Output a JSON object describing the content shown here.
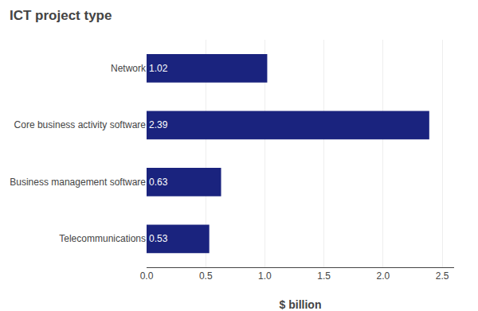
{
  "chart_data": {
    "type": "bar",
    "orientation": "horizontal",
    "title": "ICT project type",
    "xlabel": "$ billion",
    "categories": [
      "Telecommunications",
      "Business management software",
      "Core business activity software",
      "Network"
    ],
    "values": [
      0.53,
      0.63,
      2.39,
      1.02
    ],
    "color": "#1a237e",
    "xlim": [
      0,
      2.6
    ],
    "xticks": [
      {
        "value": 0,
        "label": "0.0"
      },
      0.5,
      {
        "value": 1,
        "label": "1.0"
      },
      1.5,
      {
        "value": 2,
        "label": "2.0"
      },
      2.5
    ],
    "grid": true,
    "data_labels": true
  }
}
